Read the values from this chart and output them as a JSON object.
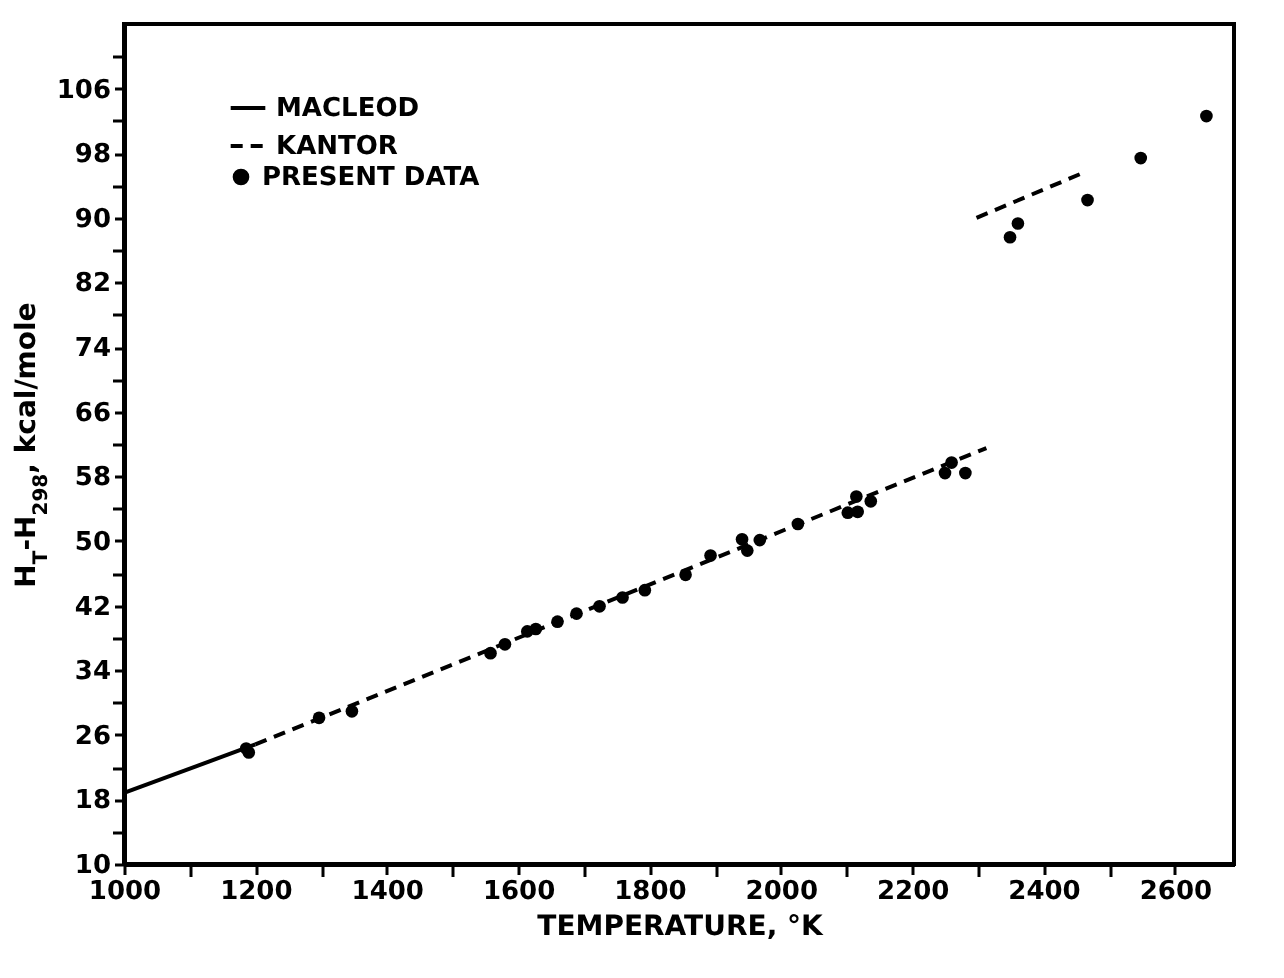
{
  "chart_data": {
    "type": "scatter",
    "xlabel": "TEMPERATURE, °K",
    "ylabel": "H$_{T}$-H$_{298}$, kcal/mole",
    "xlim": [
      1000,
      2690
    ],
    "ylim": [
      10,
      114
    ],
    "xticks": [
      1000,
      {
        "value": 1100,
        "label": null
      },
      1200,
      {
        "value": 1300,
        "label": null
      },
      1400,
      {
        "value": 1500,
        "label": null
      },
      1600,
      {
        "value": 1700,
        "label": null
      },
      1800,
      {
        "value": 1900,
        "label": null
      },
      2000,
      {
        "value": 2100,
        "label": null
      },
      2200,
      {
        "value": 2300,
        "label": null
      },
      2400,
      {
        "value": 2500,
        "label": null
      },
      2600
    ],
    "yticks": [
      10,
      {
        "value": 14,
        "label": null
      },
      18,
      {
        "value": 22,
        "label": null
      },
      26,
      {
        "value": 30,
        "label": null
      },
      34,
      {
        "value": 38,
        "label": null
      },
      42,
      {
        "value": 46,
        "label": null
      },
      50,
      {
        "value": 54,
        "label": null
      },
      58,
      {
        "value": 62,
        "label": null
      },
      66,
      {
        "value": 70,
        "label": null
      },
      74,
      {
        "value": 78,
        "label": null
      },
      82,
      {
        "value": 86,
        "label": null
      },
      90,
      {
        "value": 94,
        "label": null
      },
      98,
      {
        "value": 102,
        "label": null
      },
      106,
      {
        "value": 110,
        "label": null
      }
    ],
    "legend": "top left",
    "grid": false,
    "series": [
      {
        "name": "MACLEOD",
        "type": "line",
        "line_style": "solid",
        "color": "#000000",
        "x": [
          1000,
          1200
        ],
        "values": [
          18.8,
          24.8
        ]
      },
      {
        "name": "KANTOR",
        "type": "line",
        "line_style": "dashed",
        "color": "#000000",
        "x": [
          1200,
          2313,
          null,
          2298,
          2461
        ],
        "values": [
          24.8,
          61.5,
          null,
          90,
          95.6
        ]
      },
      {
        "name": "PRESENT DATA",
        "marker": "circle",
        "color": "#000000",
        "x": [
          1186,
          1190,
          1297,
          1347,
          1558,
          1580,
          1614,
          1627,
          1660,
          1689,
          1724,
          1759,
          1793,
          1855,
          1893,
          1941,
          1949,
          1968,
          2026,
          2102,
          2117,
          2115,
          2137,
          2250,
          2260,
          2281,
          2349,
          2361,
          2467,
          2548,
          2648
        ],
        "values": [
          24.3,
          23.8,
          28.1,
          28.9,
          36.1,
          37.2,
          38.8,
          39.1,
          40.0,
          41.0,
          41.9,
          43.0,
          43.9,
          45.8,
          48.2,
          50.2,
          48.8,
          50.1,
          52.1,
          53.5,
          53.6,
          55.5,
          54.9,
          58.4,
          59.7,
          58.4,
          87.6,
          89.3,
          92.2,
          97.4,
          102.6
        ]
      }
    ]
  }
}
